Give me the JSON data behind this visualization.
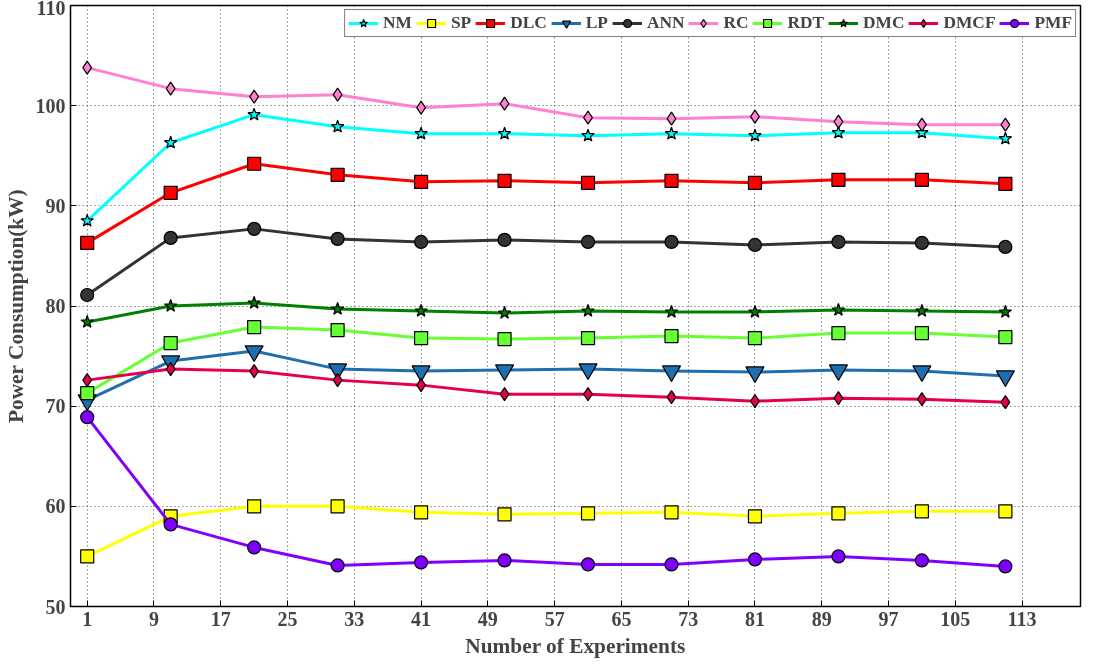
{
  "chart_data": {
    "type": "line",
    "xlabel": "Number of Experiments",
    "ylabel": "Power Consumption(kW)",
    "x": [
      1,
      11,
      21,
      31,
      41,
      51,
      61,
      71,
      81,
      91,
      101,
      111
    ],
    "xlim": [
      -1,
      120
    ],
    "xticks": [
      1,
      9,
      17,
      25,
      33,
      41,
      49,
      57,
      65,
      73,
      81,
      89,
      97,
      105,
      113
    ],
    "ylim": [
      50,
      110
    ],
    "yticks": [
      50,
      60,
      70,
      80,
      90,
      100,
      110
    ],
    "grid": true,
    "legend": "top right",
    "series": [
      {
        "name": "NM",
        "color": "#00ffff",
        "marker": "star",
        "values": [
          88.5,
          96.3,
          99.1,
          97.9,
          97.2,
          97.2,
          97.0,
          97.2,
          97.0,
          97.3,
          97.3,
          96.7
        ]
      },
      {
        "name": "SP",
        "color": "#ffff00",
        "marker": "square",
        "values": [
          55.0,
          59.0,
          60.0,
          60.0,
          59.4,
          59.2,
          59.3,
          59.4,
          59.0,
          59.3,
          59.5,
          59.5
        ]
      },
      {
        "name": "DLC",
        "color": "#ff0000",
        "marker": "square",
        "values": [
          86.3,
          91.3,
          94.2,
          93.1,
          92.4,
          92.5,
          92.3,
          92.5,
          92.3,
          92.6,
          92.6,
          92.2
        ]
      },
      {
        "name": "LP",
        "color": "#1f6fb0",
        "marker": "triangle",
        "values": [
          70.6,
          74.5,
          75.5,
          73.7,
          73.5,
          73.6,
          73.7,
          73.5,
          73.4,
          73.6,
          73.5,
          73.0
        ]
      },
      {
        "name": "ANN",
        "color": "#333333",
        "marker": "circle",
        "values": [
          81.1,
          86.8,
          87.7,
          86.7,
          86.4,
          86.6,
          86.4,
          86.4,
          86.1,
          86.4,
          86.3,
          85.9
        ]
      },
      {
        "name": "RC",
        "color": "#ff80d0",
        "marker": "diamond",
        "values": [
          103.8,
          101.7,
          100.9,
          101.1,
          99.8,
          100.2,
          98.8,
          98.7,
          98.9,
          98.4,
          98.1,
          98.1
        ]
      },
      {
        "name": "RDT",
        "color": "#66ff33",
        "marker": "square",
        "values": [
          71.3,
          76.3,
          77.9,
          77.6,
          76.8,
          76.7,
          76.8,
          77.0,
          76.8,
          77.3,
          77.3,
          76.9
        ]
      },
      {
        "name": "DMC",
        "color": "#008000",
        "marker": "star",
        "values": [
          78.4,
          80.0,
          80.3,
          79.7,
          79.5,
          79.3,
          79.5,
          79.4,
          79.4,
          79.6,
          79.5,
          79.4
        ]
      },
      {
        "name": "DMCF",
        "color": "#e6004c",
        "marker": "diamond",
        "values": [
          72.6,
          73.7,
          73.5,
          72.6,
          72.1,
          71.2,
          71.2,
          70.9,
          70.5,
          70.8,
          70.7,
          70.4
        ]
      },
      {
        "name": "PMF",
        "color": "#8000ff",
        "marker": "circle",
        "values": [
          68.9,
          58.2,
          55.9,
          54.1,
          54.4,
          54.6,
          54.2,
          54.2,
          54.7,
          55.0,
          54.6,
          54.0
        ]
      }
    ]
  }
}
